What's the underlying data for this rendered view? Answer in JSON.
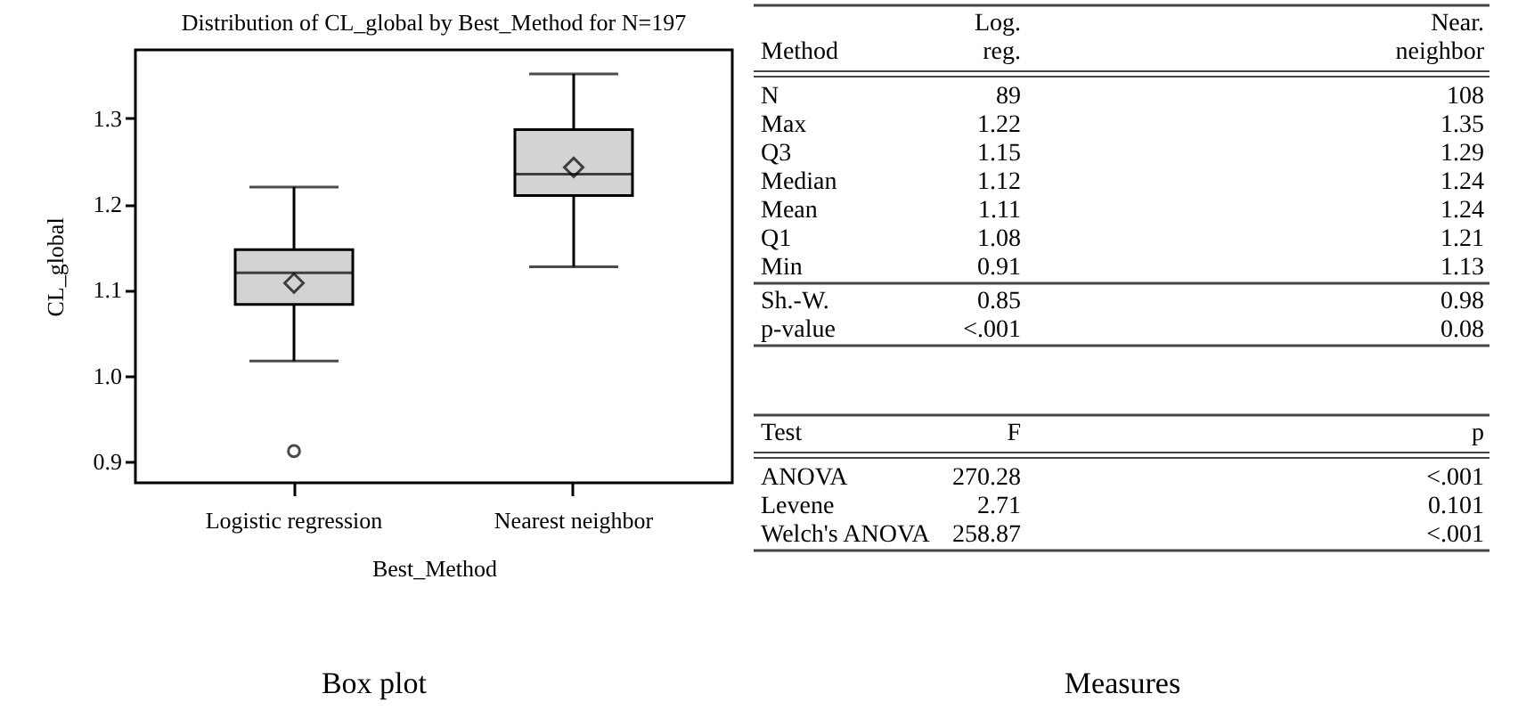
{
  "chart_data": [
    {
      "type": "box",
      "title": "Distribution of CL_global by Best_Method for N=197",
      "xlabel": "Best_Method",
      "ylabel": "CL_global",
      "categories": [
        "Logistic regression",
        "Nearest neighbor"
      ],
      "color": "#d3d3d3",
      "boxes": [
        {
          "low": 1.017,
          "q1": 1.083,
          "median": 1.12,
          "q3": 1.147,
          "high": 1.22,
          "mean": 1.108,
          "outliers": [
            0.912
          ]
        },
        {
          "low": 1.127,
          "q1": 1.21,
          "median": 1.235,
          "q3": 1.287,
          "high": 1.352,
          "mean": 1.243
        }
      ],
      "ylim": [
        0.875,
        1.38
      ],
      "yticks": [
        {
          "value": 0.9,
          "label": "0.9"
        },
        {
          "value": 1.0,
          "label": "1.0"
        },
        {
          "value": 1.1,
          "label": "1.1"
        },
        {
          "value": 1.2,
          "label": "1.2"
        },
        {
          "value": 1.3,
          "label": "1.3"
        }
      ],
      "grid": false,
      "annotations": [
        "Box plot"
      ]
    },
    {
      "type": "other",
      "ylabel": "Method",
      "categories": [
        "Log. reg.",
        "Near. neighbor"
      ],
      "y_categories": [
        "N",
        "Max",
        "Q3",
        "Median",
        "Mean",
        "Q1",
        "Min"
      ],
      "cell_labels": [
        [
          "89",
          "108"
        ],
        [
          "1.22",
          "1.35"
        ],
        [
          "1.15",
          "1.29"
        ],
        [
          "1.12",
          "1.24"
        ],
        [
          "1.11",
          "1.24"
        ],
        [
          "1.08",
          "1.21"
        ],
        [
          "0.91",
          "1.13"
        ]
      ]
    },
    {
      "type": "other",
      "y_categories": [
        "Sh.-W.",
        "p-value"
      ],
      "cell_labels": [
        [
          "0.85",
          "0.98"
        ],
        [
          "<.001",
          "0.08"
        ]
      ]
    },
    {
      "type": "other",
      "ylabel": "Test",
      "categories": [
        "F",
        "p"
      ],
      "y_categories": [
        "ANOVA",
        "Levene",
        "Welch's ANOVA"
      ],
      "cell_labels": [
        [
          "270.28",
          "<.001"
        ],
        [
          "2.71",
          "0.101"
        ],
        [
          "258.87",
          "<.001"
        ]
      ],
      "annotations": [
        "Measures"
      ]
    }
  ]
}
